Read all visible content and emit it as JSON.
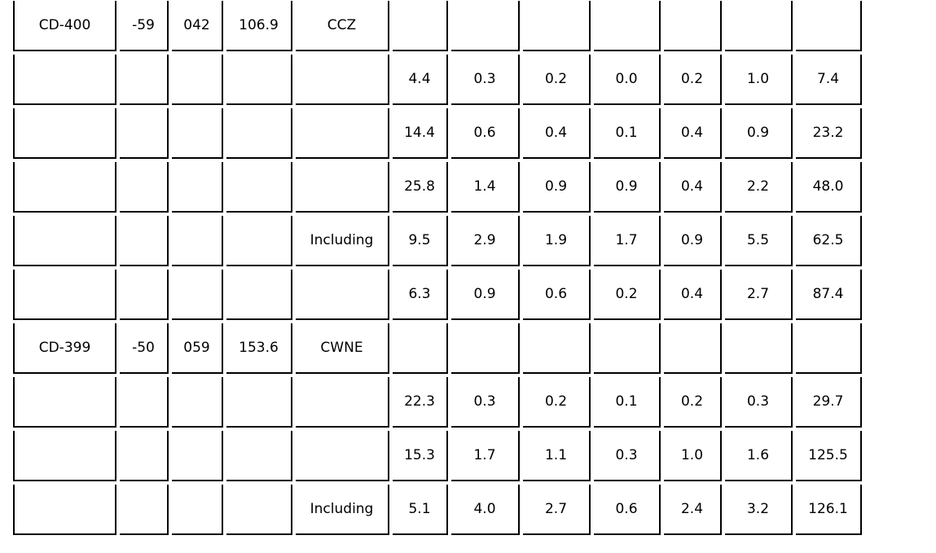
{
  "table": {
    "rows": [
      [
        "CD-400",
        "-59",
        "042",
        "106.9",
        "CCZ",
        "",
        "",
        "",
        "",
        "",
        "",
        ""
      ],
      [
        "",
        "",
        "",
        "",
        "",
        "4.4",
        "0.3",
        "0.2",
        "0.0",
        "0.2",
        "1.0",
        "7.4"
      ],
      [
        "",
        "",
        "",
        "",
        "",
        "14.4",
        "0.6",
        "0.4",
        "0.1",
        "0.4",
        "0.9",
        "23.2"
      ],
      [
        "",
        "",
        "",
        "",
        "",
        "25.8",
        "1.4",
        "0.9",
        "0.9",
        "0.4",
        "2.2",
        "48.0"
      ],
      [
        "",
        "",
        "",
        "",
        "Including",
        "9.5",
        "2.9",
        "1.9",
        "1.7",
        "0.9",
        "5.5",
        "62.5"
      ],
      [
        "",
        "",
        "",
        "",
        "",
        "6.3",
        "0.9",
        "0.6",
        "0.2",
        "0.4",
        "2.7",
        "87.4"
      ],
      [
        "CD-399",
        "-50",
        "059",
        "153.6",
        "CWNE",
        "",
        "",
        "",
        "",
        "",
        "",
        ""
      ],
      [
        "",
        "",
        "",
        "",
        "",
        "22.3",
        "0.3",
        "0.2",
        "0.1",
        "0.2",
        "0.3",
        "29.7"
      ],
      [
        "",
        "",
        "",
        "",
        "",
        "15.3",
        "1.7",
        "1.1",
        "0.3",
        "1.0",
        "1.6",
        "125.5"
      ],
      [
        "",
        "",
        "",
        "",
        "Including",
        "5.1",
        "4.0",
        "2.7",
        "0.6",
        "2.4",
        "3.2",
        "126.1"
      ]
    ]
  }
}
